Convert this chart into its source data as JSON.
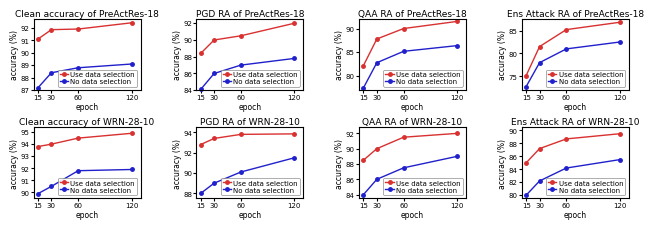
{
  "epochs": [
    15,
    30,
    60,
    120
  ],
  "plots": [
    {
      "title": "Clean accuracy of PreActRes-18",
      "red": [
        91.1,
        91.85,
        91.9,
        92.4
      ],
      "blue": [
        87.2,
        88.4,
        88.8,
        89.1
      ],
      "ylim": [
        87.0,
        92.7
      ],
      "yticks": [
        87,
        88,
        89,
        90,
        91,
        92
      ]
    },
    {
      "title": "PGD RA of PreActRes-18",
      "red": [
        88.4,
        90.0,
        90.5,
        92.0
      ],
      "blue": [
        84.1,
        86.0,
        87.0,
        87.8
      ],
      "ylim": [
        84.0,
        92.5
      ],
      "yticks": [
        84,
        86,
        88,
        90,
        92
      ]
    },
    {
      "title": "QAA RA of PreActRes-18",
      "red": [
        82.2,
        87.8,
        90.0,
        91.5
      ],
      "blue": [
        77.5,
        82.8,
        85.2,
        86.4
      ],
      "ylim": [
        77.0,
        92.0
      ],
      "yticks": [
        80,
        85,
        90
      ]
    },
    {
      "title": "Ens Attack RA of PreActRes-18",
      "red": [
        75.2,
        81.5,
        85.2,
        86.8
      ],
      "blue": [
        72.8,
        78.0,
        81.0,
        82.5
      ],
      "ylim": [
        72.0,
        87.5
      ],
      "yticks": [
        75,
        80,
        85
      ]
    },
    {
      "title": "Clean accuracy of WRN-28-10",
      "red": [
        93.8,
        94.0,
        94.5,
        94.9
      ],
      "blue": [
        89.9,
        90.5,
        91.8,
        91.9
      ],
      "ylim": [
        89.5,
        95.4
      ],
      "yticks": [
        90,
        91,
        92,
        93,
        94,
        95
      ]
    },
    {
      "title": "PGD RA of WRN-28-10",
      "red": [
        92.8,
        93.4,
        93.8,
        93.85
      ],
      "blue": [
        88.0,
        89.0,
        90.1,
        91.5
      ],
      "ylim": [
        87.5,
        94.5
      ],
      "yticks": [
        88,
        90,
        92,
        94
      ]
    },
    {
      "title": "QAA RA of WRN-28-10",
      "red": [
        88.5,
        90.0,
        91.5,
        92.0
      ],
      "blue": [
        84.0,
        86.0,
        87.5,
        89.0
      ],
      "ylim": [
        83.5,
        92.8
      ],
      "yticks": [
        84,
        86,
        88,
        90,
        92
      ]
    },
    {
      "title": "Ens Attack RA of WRN-28-10",
      "red": [
        85.0,
        87.2,
        88.7,
        89.5
      ],
      "blue": [
        80.0,
        82.2,
        84.2,
        85.5
      ],
      "ylim": [
        79.5,
        90.5
      ],
      "yticks": [
        80,
        82,
        84,
        86,
        88,
        90
      ]
    }
  ],
  "red_color": "#d93030",
  "blue_color": "#2020cc",
  "legend_label_red": "Use data selection",
  "legend_label_blue": "No data selection",
  "xlabel": "epoch",
  "ylabel": "accuracy (%)",
  "marker": "o",
  "markersize": 2.5,
  "linewidth": 1.0,
  "fontsize_title": 6.5,
  "fontsize_axis": 5.5,
  "fontsize_tick": 5.0,
  "fontsize_legend": 5.0,
  "legend_locs": [
    "lower right",
    "lower right",
    "lower right",
    "lower right",
    "lower right",
    "lower right",
    "lower right",
    "lower right"
  ]
}
